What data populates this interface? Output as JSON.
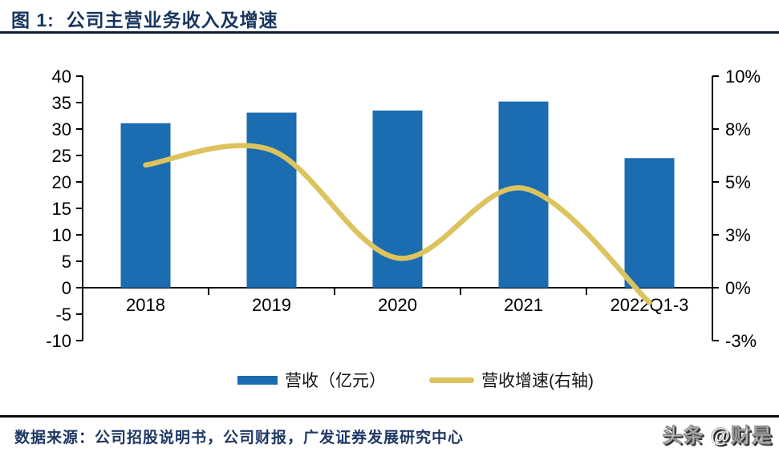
{
  "header": {
    "title": "图 1:  公司主营业务收入及增速"
  },
  "chart_data": {
    "type": "bar",
    "title": "公司主营业务收入及增速",
    "categories": [
      "2018",
      "2019",
      "2020",
      "2021",
      "2022Q1-3"
    ],
    "series": [
      {
        "name": "营收（亿元）",
        "type": "bar",
        "axis": "left",
        "values": [
          31.1,
          33.1,
          33.5,
          35.2,
          24.5
        ],
        "color": "#1B6CB0"
      },
      {
        "name": "营收增速(右轴)",
        "type": "line",
        "axis": "right",
        "unit": "%",
        "values": [
          5.8,
          6.5,
          1.4,
          4.7,
          -0.7
        ],
        "color": "#DCC35E",
        "smooth": true
      }
    ],
    "left_axis": {
      "ticks": [
        "40",
        "35",
        "30",
        "25",
        "20",
        "15",
        "10",
        "5",
        "0",
        "-5",
        "-10"
      ],
      "range": [
        -10,
        40
      ]
    },
    "right_axis": {
      "ticks": [
        "10%",
        "8%",
        "5%",
        "3%",
        "0%",
        "-3%"
      ],
      "range_pct": [
        -2.5,
        10
      ]
    },
    "legend_position": "bottom",
    "grid": false
  },
  "footer": {
    "source": "数据来源：公司招股说明书，公司财报，广发证券发展研究中心",
    "watermark": "头条 @财是"
  },
  "colors": {
    "accent_navy": "#17365D",
    "bar_blue": "#1B6CB0",
    "line_gold": "#DCC35E",
    "axis_black": "#000000"
  }
}
